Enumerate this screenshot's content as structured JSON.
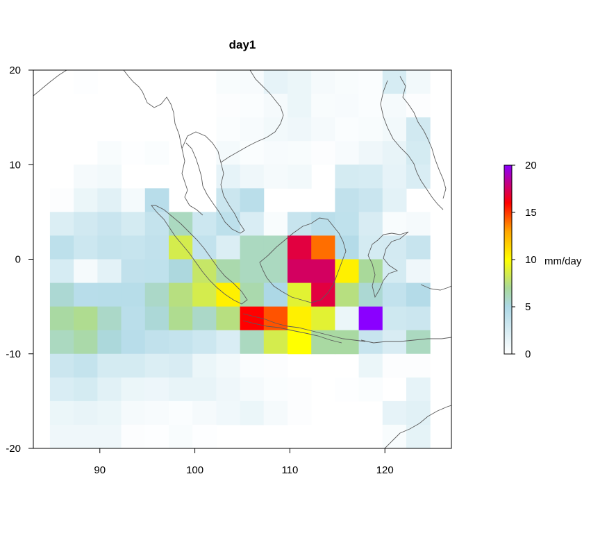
{
  "chart_data": {
    "type": "heatmap",
    "title": "day1",
    "xlabel": "",
    "ylabel": "",
    "xlim": [
      83,
      127
    ],
    "ylim": [
      -20,
      20
    ],
    "x_ticks": [
      90,
      100,
      110,
      120
    ],
    "y_ticks": [
      20,
      10,
      0,
      -10,
      -20
    ],
    "x_tick_labels": [
      "90",
      "100",
      "110",
      "120"
    ],
    "y_tick_labels": [
      "20",
      "10",
      "0",
      "-10",
      "-20"
    ],
    "cell_size_deg": 2.5,
    "grid_origin": {
      "lon": 84.75,
      "lat": 20
    },
    "grid": [
      [
        null,
        0.1,
        null,
        null,
        null,
        null,
        null,
        0.4,
        0.5,
        1.5,
        1.2,
        0.6,
        0.4,
        0.3,
        2.5,
        0.8
      ],
      [
        null,
        null,
        null,
        null,
        null,
        null,
        null,
        0.2,
        0.3,
        0.6,
        1.2,
        0.4,
        0.5,
        0.3,
        0.6,
        0.2
      ],
      [
        null,
        null,
        null,
        null,
        null,
        null,
        null,
        0.3,
        0.5,
        0.8,
        1.0,
        0.6,
        0.3,
        0.4,
        0.8,
        2.8
      ],
      [
        null,
        null,
        0.4,
        0.1,
        0.3,
        null,
        null,
        0.7,
        0.3,
        0.5,
        0.4,
        0.2,
        0.5,
        1.0,
        1.4,
        2.6
      ],
      [
        null,
        0.6,
        0.8,
        null,
        null,
        null,
        null,
        1.5,
        1.0,
        0.6,
        0.8,
        null,
        2.6,
        2.5,
        1.5,
        2.3
      ],
      [
        0.2,
        1.2,
        1.8,
        0.7,
        4.3,
        null,
        null,
        3.2,
        4.2,
        null,
        null,
        null,
        3.8,
        3.3,
        1.7,
        null
      ],
      [
        2.2,
        2.8,
        3.3,
        2.6,
        3.6,
        6.0,
        3.1,
        4.0,
        2.3,
        0.4,
        3.4,
        4.2,
        3.9,
        2.4,
        0.4,
        0.6
      ],
      [
        4.0,
        3.1,
        3.6,
        3.5,
        3.8,
        8.5,
        3.7,
        2.2,
        6.0,
        6.0,
        17.0,
        14.0,
        4.6,
        2.6,
        2.7,
        3.4
      ],
      [
        2.5,
        0.6,
        1.7,
        3.8,
        3.9,
        5.2,
        8.0,
        6.5,
        6.0,
        6.0,
        17.5,
        17.5,
        10.5,
        7.0,
        2.6,
        1.0
      ],
      [
        5.5,
        4.3,
        4.4,
        4.4,
        5.8,
        7.5,
        8.5,
        10.5,
        6.5,
        5.0,
        9.0,
        17.0,
        7.5,
        5.5,
        3.7,
        4.6
      ],
      [
        6.8,
        7.2,
        5.8,
        4.2,
        5.4,
        7.2,
        5.8,
        7.5,
        16.0,
        14.5,
        10.5,
        9.0,
        1.2,
        20.0,
        3.0,
        3.2
      ],
      [
        6.0,
        6.6,
        5.3,
        4.3,
        3.8,
        3.6,
        3.1,
        2.3,
        6.0,
        8.5,
        10.0,
        6.8,
        6.8,
        3.4,
        2.4,
        6.0
      ],
      [
        3.2,
        3.6,
        2.6,
        2.6,
        2.2,
        2.4,
        1.2,
        0.8,
        0.3,
        0.2,
        null,
        null,
        null,
        1.2,
        0.2,
        0.2
      ],
      [
        2.3,
        2.6,
        1.8,
        1.2,
        1.1,
        1.4,
        1.4,
        1.0,
        0.6,
        0.3,
        0.2,
        null,
        0.1,
        0.3,
        null,
        1.5
      ],
      [
        1.2,
        1.4,
        1.2,
        0.6,
        0.5,
        0.3,
        0.6,
        0.9,
        1.2,
        0.6,
        0.2,
        null,
        null,
        null,
        1.5,
        1.8
      ],
      [
        1.0,
        1.0,
        1.0,
        0.2,
        0.1,
        0.4,
        0.1,
        null,
        null,
        null,
        null,
        null,
        null,
        null,
        0.4,
        1.6
      ]
    ],
    "colorbar": {
      "label": "mm/day",
      "min": 0,
      "max": 20,
      "ticks": [
        0,
        5,
        10,
        15,
        20
      ],
      "tick_labels": [
        "0",
        "5",
        "10",
        "15",
        "20"
      ],
      "colors": [
        "#ffffff",
        "#add8e6",
        "#a9d99a",
        "#ffff00",
        "#ffa500",
        "#ff0000",
        "#8a00ff"
      ],
      "stops": [
        0,
        5,
        7,
        10,
        13,
        16,
        20
      ]
    },
    "coastline_color": "#5a5a5a",
    "grid_lines": false,
    "legend_position": "right"
  }
}
